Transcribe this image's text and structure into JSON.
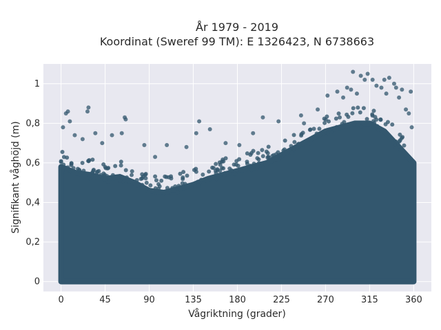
{
  "chart_data": {
    "type": "scatter",
    "title_line1": "År 1979 - 2019",
    "title_line2": "Koordinat (Sweref 99 TM): E 1326423, N 6738663",
    "xlabel": "Vågriktning (grader)",
    "ylabel": "Signifikant våghöjd (m)",
    "xlim": [
      -18,
      378
    ],
    "ylim": [
      -0.05,
      1.1
    ],
    "x_ticks": [
      0,
      45,
      90,
      135,
      180,
      225,
      270,
      315,
      360
    ],
    "x_tick_labels": [
      "0",
      "45",
      "90",
      "135",
      "180",
      "225",
      "270",
      "315",
      "360"
    ],
    "y_ticks": [
      0,
      0.2,
      0.4,
      0.6,
      0.8,
      1.0
    ],
    "y_tick_labels": [
      "0",
      "0,2",
      "0,4",
      "0,6",
      "0,8",
      "1"
    ],
    "grid": true,
    "legend": "none",
    "marker_color": "#33576e",
    "background_color": "#e8e8f0",
    "dense_envelope": {
      "x": [
        0,
        15,
        30,
        45,
        60,
        75,
        90,
        105,
        120,
        135,
        150,
        165,
        180,
        195,
        210,
        225,
        240,
        255,
        270,
        285,
        300,
        315,
        330,
        345,
        360
      ],
      "y": [
        0.58,
        0.55,
        0.54,
        0.52,
        0.53,
        0.5,
        0.46,
        0.45,
        0.47,
        0.49,
        0.52,
        0.54,
        0.56,
        0.58,
        0.6,
        0.64,
        0.68,
        0.72,
        0.76,
        0.78,
        0.8,
        0.8,
        0.76,
        0.68,
        0.6
      ],
      "y_min": 0.0
    },
    "outliers": {
      "x": [
        2,
        5,
        7,
        9,
        14,
        22,
        27,
        28,
        35,
        42,
        52,
        62,
        65,
        66,
        85,
        96,
        108,
        128,
        138,
        141,
        152,
        168,
        182,
        196,
        206,
        222,
        245,
        248,
        262,
        272,
        282,
        288,
        292,
        296,
        298,
        302,
        306,
        310,
        313,
        318,
        322,
        327,
        330,
        332,
        335,
        340,
        342,
        345,
        348,
        352,
        355,
        357,
        358
      ],
      "y": [
        0.78,
        0.85,
        0.86,
        0.81,
        0.74,
        0.72,
        0.86,
        0.88,
        0.75,
        0.7,
        0.74,
        0.75,
        0.83,
        0.82,
        0.69,
        0.63,
        0.69,
        0.68,
        0.75,
        0.81,
        0.77,
        0.7,
        0.69,
        0.75,
        0.83,
        0.81,
        0.84,
        0.8,
        0.87,
        0.94,
        0.96,
        0.93,
        0.98,
        0.97,
        1.06,
        0.95,
        1.04,
        1.02,
        1.05,
        1.02,
        0.99,
        0.98,
        1.02,
        0.95,
        1.03,
        1.0,
        0.98,
        0.93,
        0.97,
        0.87,
        0.85,
        0.96,
        0.78
      ]
    }
  }
}
